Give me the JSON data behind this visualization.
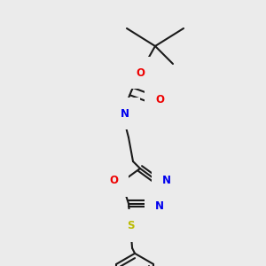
{
  "bg_color": "#ebebeb",
  "bond_color": "#1a1a1a",
  "bond_width": 1.5,
  "dbo": 0.018,
  "colors": {
    "N": "#0000ee",
    "O": "#ee0000",
    "S": "#bbbb00",
    "H": "#6fa0a0",
    "C": "#1a1a1a"
  },
  "fs": 8.5
}
